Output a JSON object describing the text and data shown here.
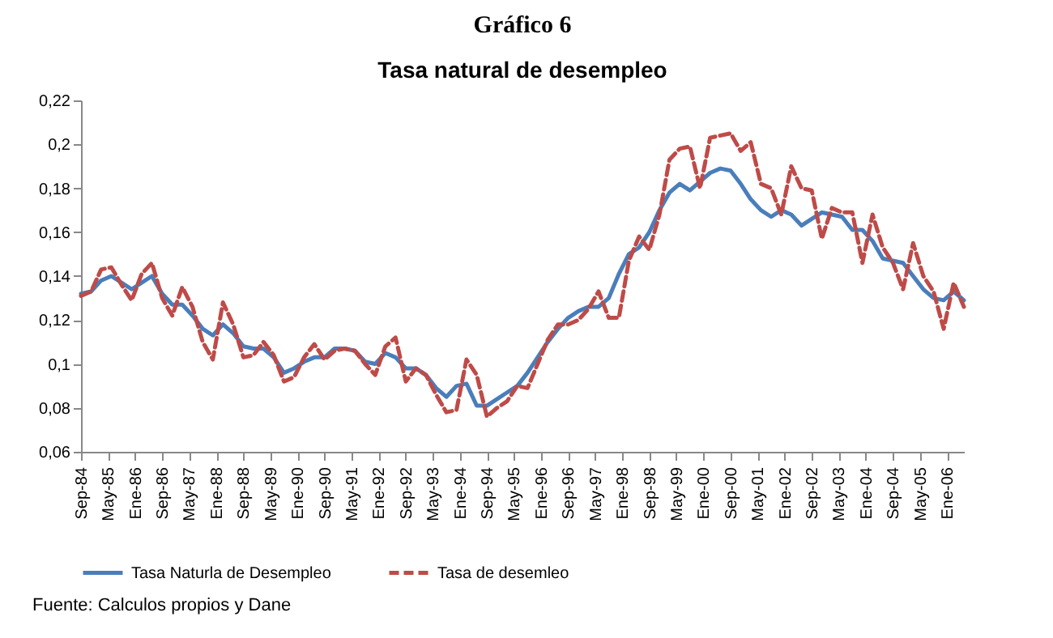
{
  "chart_data": {
    "type": "line",
    "title": "Gráfico 6",
    "subtitle": "Tasa natural de desempleo",
    "x": [
      "1984-09",
      "1984-12",
      "1985-03",
      "1985-06",
      "1985-09",
      "1985-12",
      "1986-03",
      "1986-06",
      "1986-09",
      "1986-12",
      "1987-03",
      "1987-06",
      "1987-09",
      "1987-12",
      "1988-03",
      "1988-06",
      "1988-09",
      "1988-12",
      "1989-03",
      "1989-06",
      "1989-09",
      "1989-12",
      "1990-03",
      "1990-06",
      "1990-09",
      "1990-12",
      "1991-03",
      "1991-06",
      "1991-09",
      "1991-12",
      "1992-03",
      "1992-06",
      "1992-09",
      "1992-12",
      "1993-03",
      "1993-06",
      "1993-09",
      "1993-12",
      "1994-03",
      "1994-06",
      "1994-09",
      "1994-12",
      "1995-03",
      "1995-06",
      "1995-09",
      "1995-12",
      "1996-03",
      "1996-06",
      "1996-09",
      "1996-12",
      "1997-03",
      "1997-06",
      "1997-09",
      "1997-12",
      "1998-03",
      "1998-06",
      "1998-09",
      "1998-12",
      "1999-03",
      "1999-06",
      "1999-09",
      "1999-12",
      "2000-03",
      "2000-06",
      "2000-09",
      "2000-12",
      "2001-03",
      "2001-06",
      "2001-09",
      "2001-12",
      "2002-03",
      "2002-06",
      "2002-09",
      "2002-12",
      "2003-03",
      "2003-06",
      "2003-09",
      "2003-12",
      "2004-03",
      "2004-06",
      "2004-09",
      "2004-12",
      "2005-03",
      "2005-06",
      "2005-09",
      "2005-12",
      "2006-03",
      "2006-06"
    ],
    "series": [
      {
        "name": "Tasa Naturla de Desempleo",
        "color": "#4a7ebb",
        "line_style": "solid",
        "values": [
          0.132,
          0.133,
          0.138,
          0.14,
          0.137,
          0.134,
          0.137,
          0.14,
          0.132,
          0.127,
          0.127,
          0.122,
          0.116,
          0.113,
          0.118,
          0.114,
          0.108,
          0.107,
          0.107,
          0.103,
          0.096,
          0.098,
          0.101,
          0.103,
          0.103,
          0.107,
          0.107,
          0.106,
          0.101,
          0.1,
          0.105,
          0.103,
          0.098,
          0.098,
          0.095,
          0.089,
          0.085,
          0.09,
          0.091,
          0.081,
          0.081,
          0.084,
          0.087,
          0.09,
          0.096,
          0.103,
          0.11,
          0.116,
          0.121,
          0.124,
          0.126,
          0.126,
          0.13,
          0.141,
          0.15,
          0.153,
          0.16,
          0.17,
          0.178,
          0.182,
          0.179,
          0.183,
          0.187,
          0.189,
          0.188,
          0.182,
          0.175,
          0.17,
          0.167,
          0.17,
          0.168,
          0.163,
          0.166,
          0.169,
          0.168,
          0.167,
          0.161,
          0.161,
          0.156,
          0.148,
          0.147,
          0.146,
          0.14,
          0.134,
          0.13,
          0.129,
          0.133,
          0.129
        ]
      },
      {
        "name": "Tasa de desemleo",
        "color": "#be4b48",
        "line_style": "dashed",
        "values": [
          0.131,
          0.133,
          0.143,
          0.144,
          0.136,
          0.129,
          0.141,
          0.146,
          0.13,
          0.122,
          0.135,
          0.126,
          0.11,
          0.102,
          0.128,
          0.118,
          0.103,
          0.104,
          0.11,
          0.104,
          0.092,
          0.094,
          0.103,
          0.109,
          0.102,
          0.106,
          0.107,
          0.106,
          0.1,
          0.095,
          0.108,
          0.112,
          0.092,
          0.098,
          0.095,
          0.086,
          0.078,
          0.079,
          0.102,
          0.095,
          0.076,
          0.08,
          0.083,
          0.09,
          0.089,
          0.1,
          0.111,
          0.118,
          0.118,
          0.12,
          0.125,
          0.133,
          0.121,
          0.121,
          0.147,
          0.158,
          0.152,
          0.168,
          0.193,
          0.198,
          0.199,
          0.18,
          0.203,
          0.204,
          0.205,
          0.197,
          0.201,
          0.182,
          0.18,
          0.168,
          0.19,
          0.18,
          0.179,
          0.157,
          0.171,
          0.169,
          0.169,
          0.146,
          0.168,
          0.153,
          0.146,
          0.134,
          0.155,
          0.14,
          0.133,
          0.116,
          0.137,
          0.126
        ]
      }
    ],
    "xlim": [
      "1984-09",
      "2006-06"
    ],
    "xticks": [
      {
        "value": "1984-09",
        "label": "Sep-84"
      },
      {
        "value": "1985-05",
        "label": "May-85"
      },
      {
        "value": "1986-01",
        "label": "Ene-86"
      },
      {
        "value": "1986-09",
        "label": "Sep-86"
      },
      {
        "value": "1987-05",
        "label": "May-87"
      },
      {
        "value": "1988-01",
        "label": "Ene-88"
      },
      {
        "value": "1988-09",
        "label": "Sep-88"
      },
      {
        "value": "1989-05",
        "label": "May-89"
      },
      {
        "value": "1990-01",
        "label": "Ene-90"
      },
      {
        "value": "1990-09",
        "label": "Sep-90"
      },
      {
        "value": "1991-05",
        "label": "May-91"
      },
      {
        "value": "1992-01",
        "label": "Ene-92"
      },
      {
        "value": "1992-09",
        "label": "Sep-92"
      },
      {
        "value": "1993-05",
        "label": "May-93"
      },
      {
        "value": "1994-01",
        "label": "Ene-94"
      },
      {
        "value": "1994-09",
        "label": "Sep-94"
      },
      {
        "value": "1995-05",
        "label": "May-95"
      },
      {
        "value": "1996-01",
        "label": "Ene-96"
      },
      {
        "value": "1996-09",
        "label": "Sep-96"
      },
      {
        "value": "1997-05",
        "label": "May-97"
      },
      {
        "value": "1998-01",
        "label": "Ene-98"
      },
      {
        "value": "1998-09",
        "label": "Sep-98"
      },
      {
        "value": "1999-05",
        "label": "May-99"
      },
      {
        "value": "2000-01",
        "label": "Ene-00"
      },
      {
        "value": "2000-09",
        "label": "Sep-00"
      },
      {
        "value": "2001-05",
        "label": "May-01"
      },
      {
        "value": "2002-01",
        "label": "Ene-02"
      },
      {
        "value": "2002-09",
        "label": "Sep-02"
      },
      {
        "value": "2003-05",
        "label": "May-03"
      },
      {
        "value": "2004-01",
        "label": "Ene-04"
      },
      {
        "value": "2004-09",
        "label": "Sep-04"
      },
      {
        "value": "2005-05",
        "label": "May-05"
      },
      {
        "value": "2006-01",
        "label": "Ene-06"
      }
    ],
    "ylim": [
      0.06,
      0.22
    ],
    "yticks": [
      {
        "value": 0.06,
        "label": "0,06"
      },
      {
        "value": 0.08,
        "label": "0,08"
      },
      {
        "value": 0.1,
        "label": "0,1"
      },
      {
        "value": 0.12,
        "label": "0,12"
      },
      {
        "value": 0.14,
        "label": "0,14"
      },
      {
        "value": 0.16,
        "label": "0,16"
      },
      {
        "value": 0.18,
        "label": "0,18"
      },
      {
        "value": 0.2,
        "label": "0,2"
      },
      {
        "value": 0.22,
        "label": "0,22"
      }
    ],
    "grid": false,
    "legend": "bottom",
    "annotations": [
      "Fuente: Calculos propios y Dane"
    ]
  }
}
